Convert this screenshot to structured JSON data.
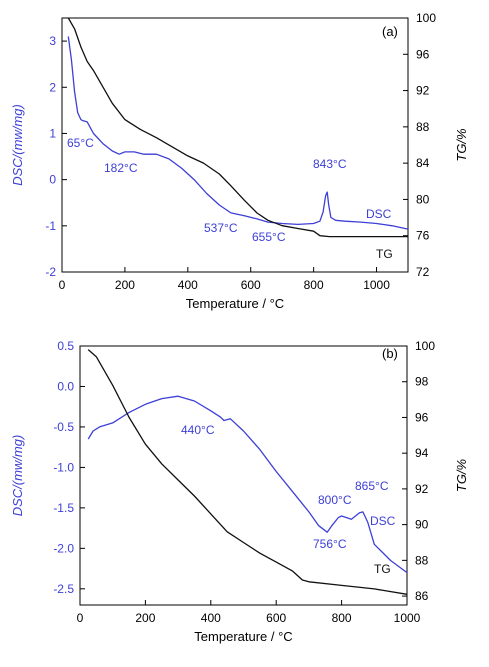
{
  "colors": {
    "dsc": "#3d3fd6",
    "tg": "#111111",
    "axis": "#000000"
  },
  "chart_data": [
    {
      "type": "line",
      "panel": "(a)",
      "xlabel": "Temperature / °C",
      "ylabel_left": "DSC/(mw/mg)",
      "ylabel_right": "TG/%",
      "xlim": [
        0,
        1100
      ],
      "ylim_left": [
        -2,
        3.5
      ],
      "ylim_right": [
        72,
        100
      ],
      "xticks": [
        "0",
        "200",
        "400",
        "600",
        "800",
        "1000"
      ],
      "xtick_values": [
        0,
        200,
        400,
        600,
        800,
        1000
      ],
      "yticks_left": [
        "-2",
        "-1",
        "0",
        "1",
        "2",
        "3"
      ],
      "ytick_values_left": [
        -2,
        -1,
        0,
        1,
        2,
        3
      ],
      "yticks_right": [
        "72",
        "76",
        "80",
        "84",
        "88",
        "92",
        "96",
        "100"
      ],
      "ytick_values_right": [
        72,
        76,
        80,
        84,
        88,
        92,
        96,
        100
      ],
      "series": [
        {
          "name": "DSC",
          "axis": "left",
          "x": [
            20,
            30,
            40,
            50,
            60,
            65,
            80,
            100,
            130,
            160,
            182,
            200,
            230,
            260,
            300,
            340,
            380,
            420,
            460,
            500,
            537,
            580,
            620,
            655,
            700,
            750,
            800,
            820,
            830,
            838,
            843,
            848,
            855,
            870,
            900,
            950,
            1000,
            1050,
            1100
          ],
          "y": [
            3.1,
            2.6,
            1.9,
            1.45,
            1.3,
            1.28,
            1.25,
            1.0,
            0.78,
            0.62,
            0.55,
            0.6,
            0.6,
            0.55,
            0.55,
            0.45,
            0.25,
            0.0,
            -0.3,
            -0.55,
            -0.72,
            -0.78,
            -0.85,
            -0.92,
            -0.95,
            -0.97,
            -0.95,
            -0.9,
            -0.7,
            -0.35,
            -0.27,
            -0.55,
            -0.82,
            -0.88,
            -0.9,
            -0.92,
            -0.95,
            -1.0,
            -1.07
          ]
        },
        {
          "name": "TG",
          "axis": "right",
          "x": [
            20,
            40,
            60,
            80,
            100,
            130,
            160,
            200,
            250,
            300,
            350,
            400,
            450,
            500,
            537,
            580,
            620,
            655,
            700,
            750,
            800,
            820,
            850,
            900,
            1000,
            1100
          ],
          "y": [
            100,
            98.8,
            96.8,
            95.2,
            94.2,
            92.4,
            90.6,
            88.8,
            87.7,
            86.8,
            85.8,
            84.8,
            84.0,
            82.8,
            81.5,
            79.9,
            78.5,
            77.7,
            77.1,
            76.8,
            76.5,
            76.0,
            75.9,
            75.9,
            75.9,
            75.9
          ]
        }
      ],
      "annotations": [
        "65°C",
        "182°C",
        "537°C",
        "655°C",
        "843°C",
        "DSC",
        "TG"
      ]
    },
    {
      "type": "line",
      "panel": "(b)",
      "xlabel": "Temperature / °C",
      "ylabel_left": "DSC/(mw/mg)",
      "ylabel_right": "TG/%",
      "xlim": [
        0,
        1000
      ],
      "ylim_left": [
        -2.7,
        0.5
      ],
      "ylim_right": [
        85.5,
        100
      ],
      "xticks": [
        "0",
        "200",
        "400",
        "600",
        "800",
        "1000"
      ],
      "xtick_values": [
        0,
        200,
        400,
        600,
        800,
        1000
      ],
      "yticks_left": [
        "-2.5",
        "-2.0",
        "-1.5",
        "-1.0",
        "-0.5",
        "0.0",
        "0.5"
      ],
      "ytick_values_left": [
        -2.5,
        -2.0,
        -1.5,
        -1.0,
        -0.5,
        0.0,
        0.5
      ],
      "yticks_right": [
        "86",
        "88",
        "90",
        "92",
        "94",
        "96",
        "98",
        "100"
      ],
      "ytick_values_right": [
        86,
        88,
        90,
        92,
        94,
        96,
        98,
        100
      ],
      "series": [
        {
          "name": "DSC",
          "axis": "left",
          "x": [
            25,
            40,
            60,
            100,
            150,
            200,
            250,
            300,
            350,
            400,
            430,
            440,
            460,
            500,
            550,
            600,
            650,
            700,
            730,
            756,
            770,
            790,
            800,
            830,
            855,
            865,
            880,
            900,
            950,
            1000
          ],
          "y": [
            -0.65,
            -0.55,
            -0.5,
            -0.45,
            -0.32,
            -0.22,
            -0.15,
            -0.12,
            -0.18,
            -0.3,
            -0.38,
            -0.42,
            -0.4,
            -0.55,
            -0.78,
            -1.05,
            -1.3,
            -1.55,
            -1.72,
            -1.8,
            -1.72,
            -1.62,
            -1.6,
            -1.64,
            -1.56,
            -1.55,
            -1.68,
            -1.95,
            -2.15,
            -2.3
          ]
        },
        {
          "name": "TG",
          "axis": "right",
          "x": [
            25,
            50,
            100,
            150,
            200,
            250,
            300,
            350,
            400,
            450,
            500,
            550,
            600,
            650,
            680,
            700,
            800,
            900,
            1000
          ],
          "y": [
            99.8,
            99.4,
            97.8,
            96.0,
            94.5,
            93.4,
            92.5,
            91.6,
            90.6,
            89.6,
            89.0,
            88.4,
            87.9,
            87.4,
            86.9,
            86.8,
            86.6,
            86.4,
            86.1
          ]
        }
      ],
      "annotations": [
        "440°C",
        "756°C",
        "800°C",
        "865°C",
        "DSC",
        "TG"
      ]
    }
  ]
}
